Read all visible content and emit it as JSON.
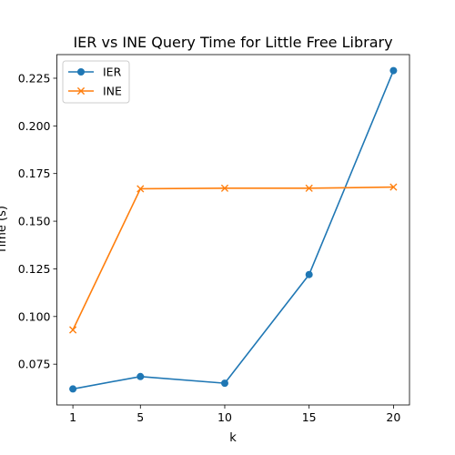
{
  "chart_data": {
    "type": "line",
    "title": "IER vs INE Query Time for Little Free Library",
    "xlabel": "k",
    "ylabel": "Time (s)",
    "x": [
      1,
      5,
      10,
      15,
      20
    ],
    "xlim": [
      0.05,
      20.95
    ],
    "ylim": [
      0.0536,
      0.2374
    ],
    "yticks": [
      0.075,
      0.1,
      0.125,
      0.15,
      0.175,
      0.2,
      0.225
    ],
    "ytick_labels": [
      "0.075",
      "0.100",
      "0.125",
      "0.150",
      "0.175",
      "0.200",
      "0.225"
    ],
    "xtick_labels": [
      "1",
      "5",
      "10",
      "15",
      "20"
    ],
    "series": [
      {
        "name": "IER",
        "color": "#1f77b4",
        "marker": "circle",
        "values": [
          0.062,
          0.0685,
          0.065,
          0.122,
          0.229
        ]
      },
      {
        "name": "INE",
        "color": "#ff7f0e",
        "marker": "x",
        "values": [
          0.093,
          0.167,
          0.1673,
          0.1673,
          0.1679
        ]
      }
    ],
    "legend_position": "upper-left",
    "grid": false
  }
}
